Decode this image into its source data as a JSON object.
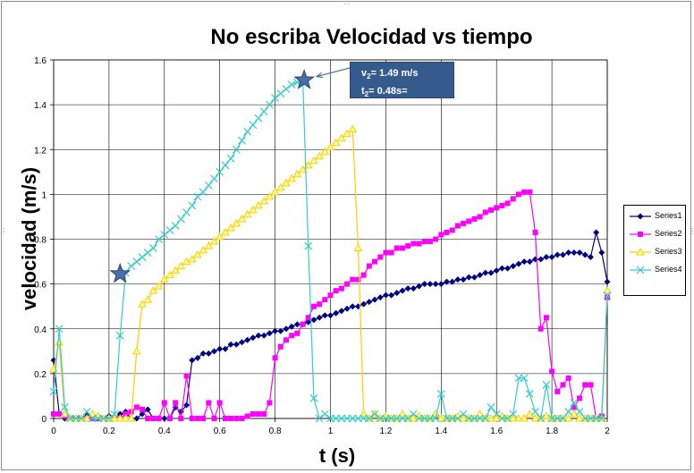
{
  "chart_data": {
    "type": "scatter",
    "title": "No escriba Velocidad vs tiempo",
    "xlabel": "t (s)",
    "ylabel": "velocidad (m/s)",
    "xlim": [
      0,
      2
    ],
    "ylim": [
      0,
      1.6
    ],
    "xticks": [
      "0",
      "0.2",
      "0.4",
      "0.6",
      "0.8",
      "1",
      "1.2",
      "1.4",
      "1.6",
      "1.8",
      "2"
    ],
    "yticks": [
      "0",
      "0.2",
      "0.4",
      "0.6",
      "0.8",
      "1",
      "1.2",
      "1.4",
      "1.6"
    ],
    "grid": true,
    "legend_position": "right",
    "series": [
      {
        "name": "Series1",
        "color": "#000080",
        "marker": "diamond",
        "x": [
          0.0,
          0.02,
          0.04,
          0.06,
          0.08,
          0.1,
          0.12,
          0.14,
          0.16,
          0.18,
          0.2,
          0.22,
          0.24,
          0.26,
          0.28,
          0.3,
          0.32,
          0.34,
          0.36,
          0.38,
          0.4,
          0.42,
          0.44,
          0.46,
          0.48,
          0.5,
          0.52,
          0.54,
          0.56,
          0.58,
          0.6,
          0.62,
          0.64,
          0.66,
          0.68,
          0.7,
          0.72,
          0.74,
          0.76,
          0.78,
          0.8,
          0.82,
          0.84,
          0.86,
          0.88,
          0.9,
          0.92,
          0.94,
          0.96,
          0.98,
          1.0,
          1.02,
          1.04,
          1.06,
          1.08,
          1.1,
          1.12,
          1.14,
          1.16,
          1.18,
          1.2,
          1.22,
          1.24,
          1.26,
          1.28,
          1.3,
          1.32,
          1.34,
          1.36,
          1.38,
          1.4,
          1.42,
          1.44,
          1.46,
          1.48,
          1.5,
          1.52,
          1.54,
          1.56,
          1.58,
          1.6,
          1.62,
          1.64,
          1.66,
          1.68,
          1.7,
          1.72,
          1.74,
          1.76,
          1.78,
          1.8,
          1.82,
          1.84,
          1.86,
          1.88,
          1.9,
          1.92,
          1.94,
          1.96,
          1.98,
          2.0
        ],
        "y": [
          0.26,
          0.02,
          0.0,
          0.0,
          0.0,
          0.0,
          0.02,
          0.0,
          0.0,
          0.0,
          0.01,
          0.0,
          0.02,
          0.03,
          0.0,
          0.0,
          0.02,
          0.04,
          0.0,
          0.0,
          0.0,
          0.0,
          0.05,
          0.03,
          0.06,
          0.26,
          0.27,
          0.29,
          0.29,
          0.3,
          0.31,
          0.31,
          0.33,
          0.33,
          0.34,
          0.35,
          0.36,
          0.37,
          0.37,
          0.38,
          0.39,
          0.39,
          0.4,
          0.41,
          0.42,
          0.42,
          0.43,
          0.44,
          0.45,
          0.46,
          0.46,
          0.47,
          0.48,
          0.49,
          0.5,
          0.5,
          0.51,
          0.52,
          0.53,
          0.54,
          0.55,
          0.55,
          0.56,
          0.57,
          0.58,
          0.58,
          0.59,
          0.6,
          0.6,
          0.6,
          0.6,
          0.61,
          0.61,
          0.62,
          0.62,
          0.63,
          0.63,
          0.64,
          0.65,
          0.65,
          0.66,
          0.67,
          0.67,
          0.68,
          0.69,
          0.7,
          0.7,
          0.71,
          0.71,
          0.72,
          0.72,
          0.73,
          0.73,
          0.74,
          0.74,
          0.74,
          0.73,
          0.72,
          0.83,
          0.74,
          0.61
        ]
      },
      {
        "name": "Series2",
        "color": "#ff00ff",
        "marker": "square",
        "x": [
          0.0,
          0.02,
          0.04,
          0.06,
          0.08,
          0.1,
          0.12,
          0.14,
          0.16,
          0.18,
          0.2,
          0.22,
          0.24,
          0.26,
          0.28,
          0.3,
          0.32,
          0.34,
          0.36,
          0.38,
          0.4,
          0.42,
          0.44,
          0.46,
          0.48,
          0.5,
          0.52,
          0.54,
          0.56,
          0.58,
          0.6,
          0.62,
          0.64,
          0.66,
          0.68,
          0.7,
          0.72,
          0.74,
          0.76,
          0.78,
          0.8,
          0.82,
          0.84,
          0.86,
          0.88,
          0.9,
          0.92,
          0.94,
          0.96,
          0.98,
          1.0,
          1.02,
          1.04,
          1.06,
          1.08,
          1.1,
          1.12,
          1.14,
          1.16,
          1.18,
          1.2,
          1.22,
          1.24,
          1.26,
          1.28,
          1.3,
          1.32,
          1.34,
          1.36,
          1.38,
          1.4,
          1.42,
          1.44,
          1.46,
          1.48,
          1.5,
          1.52,
          1.54,
          1.56,
          1.58,
          1.6,
          1.62,
          1.64,
          1.66,
          1.68,
          1.7,
          1.72,
          1.74,
          1.76,
          1.78,
          1.8,
          1.82,
          1.84,
          1.86,
          1.88,
          1.9,
          1.92,
          1.94,
          1.96,
          1.98,
          2.0
        ],
        "y": [
          0.02,
          0.02,
          0.01,
          0.0,
          0.0,
          0.0,
          0.0,
          0.0,
          0.0,
          0.0,
          0.0,
          0.0,
          0.0,
          0.02,
          0.03,
          0.05,
          0.04,
          0.0,
          0.0,
          0.0,
          0.07,
          0.0,
          0.07,
          0.0,
          0.19,
          0.0,
          0.0,
          0.0,
          0.07,
          0.0,
          0.07,
          0.0,
          0.0,
          0.0,
          0.0,
          0.01,
          0.02,
          0.02,
          0.02,
          0.07,
          0.27,
          0.32,
          0.35,
          0.37,
          0.38,
          0.42,
          0.45,
          0.5,
          0.51,
          0.53,
          0.55,
          0.57,
          0.58,
          0.6,
          0.62,
          0.62,
          0.64,
          0.68,
          0.7,
          0.72,
          0.74,
          0.74,
          0.76,
          0.76,
          0.77,
          0.78,
          0.78,
          0.79,
          0.79,
          0.8,
          0.82,
          0.83,
          0.84,
          0.86,
          0.87,
          0.88,
          0.89,
          0.9,
          0.92,
          0.93,
          0.94,
          0.95,
          0.96,
          0.98,
          1.0,
          1.01,
          1.01,
          0.83,
          0.4,
          0.45,
          0.21,
          0.12,
          0.15,
          0.18,
          0.05,
          0.09,
          0.15,
          0.15,
          0.0,
          0.01,
          0.54
        ]
      },
      {
        "name": "Series3",
        "color": "#ffcc00",
        "marker": "triangle",
        "x": [
          0.0,
          0.02,
          0.04,
          0.06,
          0.08,
          0.1,
          0.12,
          0.14,
          0.16,
          0.18,
          0.2,
          0.22,
          0.24,
          0.26,
          0.28,
          0.3,
          0.32,
          0.34,
          0.36,
          0.38,
          0.4,
          0.42,
          0.44,
          0.46,
          0.48,
          0.5,
          0.52,
          0.54,
          0.56,
          0.58,
          0.6,
          0.62,
          0.64,
          0.66,
          0.68,
          0.7,
          0.72,
          0.74,
          0.76,
          0.78,
          0.8,
          0.82,
          0.84,
          0.86,
          0.88,
          0.9,
          0.92,
          0.94,
          0.96,
          0.98,
          1.0,
          1.02,
          1.04,
          1.06,
          1.08,
          1.1,
          1.12,
          1.14,
          1.16,
          1.18,
          1.2,
          1.22,
          1.24,
          1.26,
          1.28,
          1.3,
          1.32,
          1.34,
          1.36,
          1.38,
          1.4,
          1.42,
          1.44,
          1.46,
          1.48,
          1.5,
          1.52,
          1.54,
          1.56,
          1.58,
          1.6,
          1.62,
          1.64,
          1.66,
          1.68,
          1.7,
          1.72,
          1.74,
          1.76,
          1.78,
          1.8,
          1.82,
          1.84,
          1.86,
          1.88,
          1.9,
          1.92,
          1.94,
          1.96,
          1.98,
          2.0
        ],
        "y": [
          0.22,
          0.34,
          0.02,
          0.0,
          0.0,
          0.0,
          0.0,
          0.02,
          0.01,
          0.0,
          0.0,
          0.0,
          0.0,
          0.0,
          0.0,
          0.3,
          0.51,
          0.53,
          0.57,
          0.59,
          0.62,
          0.64,
          0.66,
          0.68,
          0.7,
          0.71,
          0.73,
          0.75,
          0.77,
          0.79,
          0.81,
          0.83,
          0.85,
          0.87,
          0.89,
          0.91,
          0.93,
          0.95,
          0.97,
          0.99,
          1.01,
          1.03,
          1.05,
          1.07,
          1.09,
          1.11,
          1.13,
          1.15,
          1.17,
          1.19,
          1.21,
          1.23,
          1.25,
          1.27,
          1.29,
          0.76,
          0.02,
          0.0,
          0.02,
          0.0,
          0.01,
          0.0,
          0.0,
          0.02,
          0.0,
          0.0,
          0.01,
          0.0,
          0.0,
          0.02,
          0.0,
          0.0,
          0.0,
          0.01,
          0.0,
          0.0,
          0.0,
          0.02,
          0.0,
          0.0,
          0.0,
          0.01,
          0.0,
          0.0,
          0.0,
          0.0,
          0.02,
          0.0,
          0.0,
          0.01,
          0.0,
          0.0,
          0.0,
          0.0,
          0.02,
          0.0,
          0.0,
          0.0,
          0.0,
          0.0,
          0.57
        ]
      },
      {
        "name": "Series4",
        "color": "#33cccc",
        "marker": "x",
        "x": [
          0.0,
          0.02,
          0.04,
          0.06,
          0.08,
          0.1,
          0.12,
          0.14,
          0.16,
          0.18,
          0.2,
          0.22,
          0.24,
          0.26,
          0.28,
          0.3,
          0.32,
          0.34,
          0.36,
          0.38,
          0.4,
          0.42,
          0.44,
          0.46,
          0.48,
          0.5,
          0.52,
          0.54,
          0.56,
          0.58,
          0.6,
          0.62,
          0.64,
          0.66,
          0.68,
          0.7,
          0.72,
          0.74,
          0.76,
          0.78,
          0.8,
          0.82,
          0.84,
          0.86,
          0.88,
          0.9,
          0.92,
          0.94,
          0.96,
          0.98,
          1.0,
          1.02,
          1.04,
          1.06,
          1.08,
          1.1,
          1.12,
          1.14,
          1.16,
          1.18,
          1.2,
          1.22,
          1.24,
          1.26,
          1.28,
          1.3,
          1.32,
          1.34,
          1.36,
          1.38,
          1.4,
          1.42,
          1.44,
          1.46,
          1.48,
          1.5,
          1.52,
          1.54,
          1.56,
          1.58,
          1.6,
          1.62,
          1.64,
          1.66,
          1.68,
          1.7,
          1.72,
          1.74,
          1.76,
          1.78,
          1.8,
          1.82,
          1.84,
          1.86,
          1.88,
          1.9,
          1.92,
          1.94,
          1.96,
          1.98,
          2.0
        ],
        "y": [
          0.12,
          0.4,
          0.05,
          0.0,
          0.0,
          0.0,
          0.03,
          0.0,
          0.0,
          0.0,
          0.0,
          0.02,
          0.37,
          0.65,
          0.68,
          0.7,
          0.72,
          0.74,
          0.76,
          0.8,
          0.82,
          0.84,
          0.86,
          0.89,
          0.92,
          0.95,
          0.99,
          1.01,
          1.04,
          1.07,
          1.1,
          1.13,
          1.16,
          1.2,
          1.24,
          1.28,
          1.31,
          1.34,
          1.37,
          1.4,
          1.43,
          1.45,
          1.47,
          1.49,
          1.5,
          1.51,
          0.77,
          0.09,
          0.0,
          0.02,
          0.0,
          0.0,
          0.0,
          0.0,
          0.0,
          0.0,
          0.0,
          0.0,
          0.02,
          0.0,
          0.0,
          0.0,
          0.0,
          0.0,
          0.0,
          0.02,
          0.0,
          0.0,
          0.0,
          0.0,
          0.11,
          0.0,
          0.0,
          0.0,
          0.02,
          0.0,
          0.0,
          0.0,
          0.0,
          0.05,
          0.02,
          0.0,
          0.0,
          0.02,
          0.18,
          0.18,
          0.11,
          0.03,
          0.0,
          0.15,
          0.0,
          0.0,
          0.0,
          0.03,
          0.07,
          0.03,
          0.0,
          0.0,
          0.0,
          0.0,
          0.55
        ]
      }
    ],
    "stars": [
      {
        "x": 0.24,
        "y": 0.645
      },
      {
        "x": 0.905,
        "y": 1.51
      }
    ],
    "annotation": {
      "line1_main": "v",
      "line1_sub": "2",
      "line1_rest": "= 1.49 m/s",
      "line2_main": "t",
      "line2_sub": "2",
      "line2_rest": "= 0.48s="
    }
  }
}
